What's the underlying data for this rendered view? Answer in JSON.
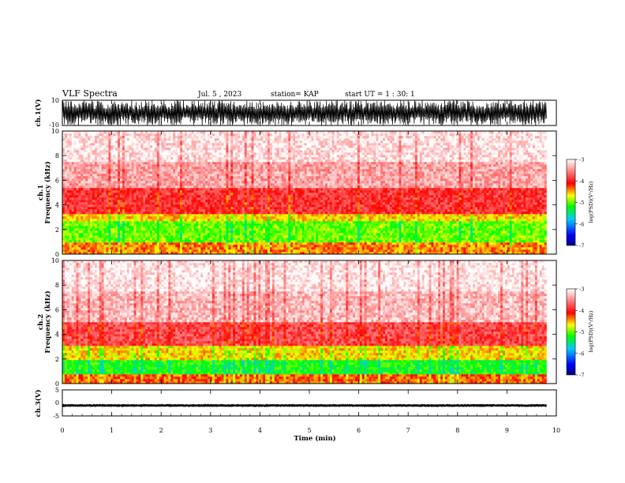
{
  "header": {
    "title": "VLF Spectra",
    "date": "Jul. 5 , 2023",
    "station": "station= KAP",
    "start": "start UT = 1 : 30: 1"
  },
  "chart_data": [
    {
      "type": "line",
      "name": "ch1-waveform",
      "ylabel": "ch.1(V)",
      "ylim": [
        -10,
        10
      ],
      "yticklabels": [
        "10",
        "-10"
      ],
      "xlim": [
        0,
        10
      ],
      "envelope": "waveform spans roughly -9 to +10 V over 0–9.8 min"
    },
    {
      "type": "heatmap",
      "name": "ch1-spectrogram",
      "ylabel": "ch.1\nFrequency (kHz)",
      "ylabel_lines": [
        "ch.1",
        "Frequency (kHz)"
      ],
      "ylim": [
        0,
        10
      ],
      "yticks": [
        0,
        2,
        4,
        6,
        8,
        10
      ],
      "xlim": [
        0,
        10
      ],
      "data_extent_min": 9.8,
      "colorbar": {
        "label": "log(PSD)(V²/Hz)",
        "ticks": [
          -3,
          -4,
          -5,
          -6,
          -7
        ],
        "range": [
          -7,
          -3
        ]
      },
      "bands": [
        {
          "f_low": 0.0,
          "f_high": 1.0,
          "level": -4.4
        },
        {
          "f_low": 1.0,
          "f_high": 2.7,
          "level": -5.0
        },
        {
          "f_low": 2.7,
          "f_high": 3.3,
          "level": -4.6
        },
        {
          "f_low": 3.3,
          "f_high": 5.3,
          "level": -3.9
        },
        {
          "f_low": 5.3,
          "f_high": 7.5,
          "level": -3.4
        },
        {
          "f_low": 7.5,
          "f_high": 10.0,
          "level": -3.15
        }
      ]
    },
    {
      "type": "heatmap",
      "name": "ch2-spectrogram",
      "ylabel": "ch.2\nFrequency (kHz)",
      "ylabel_lines": [
        "ch.2",
        "Frequency (kHz)"
      ],
      "ylim": [
        0,
        10
      ],
      "yticks": [
        0,
        2,
        4,
        6,
        8,
        10
      ],
      "xlim": [
        0,
        10
      ],
      "data_extent_min": 9.8,
      "colorbar": {
        "label": "log(PSD)(V²/Hz)",
        "ticks": [
          -3,
          -4,
          -5,
          -6,
          -7
        ],
        "range": [
          -7,
          -3
        ]
      },
      "bands": [
        {
          "f_low": 0.0,
          "f_high": 0.7,
          "level": -4.3
        },
        {
          "f_low": 0.7,
          "f_high": 2.0,
          "level": -5.2
        },
        {
          "f_low": 2.0,
          "f_high": 3.0,
          "level": -4.6
        },
        {
          "f_low": 3.0,
          "f_high": 5.0,
          "level": -3.8
        },
        {
          "f_low": 5.0,
          "f_high": 7.5,
          "level": -3.3
        },
        {
          "f_low": 7.5,
          "f_high": 10.0,
          "level": -3.1
        }
      ]
    },
    {
      "type": "line",
      "name": "ch3-waveform",
      "ylabel": "ch.3(V)",
      "ylim": [
        -5,
        5
      ],
      "yticklabels": [
        "5",
        "0",
        "-5"
      ],
      "xlim": [
        0,
        10
      ],
      "xticks": [
        0,
        1,
        2,
        3,
        4,
        5,
        6,
        7,
        8,
        9,
        10
      ],
      "xlabel": "Time (min)",
      "envelope": "narrow band around -1 V over 0–9.8 min"
    }
  ]
}
